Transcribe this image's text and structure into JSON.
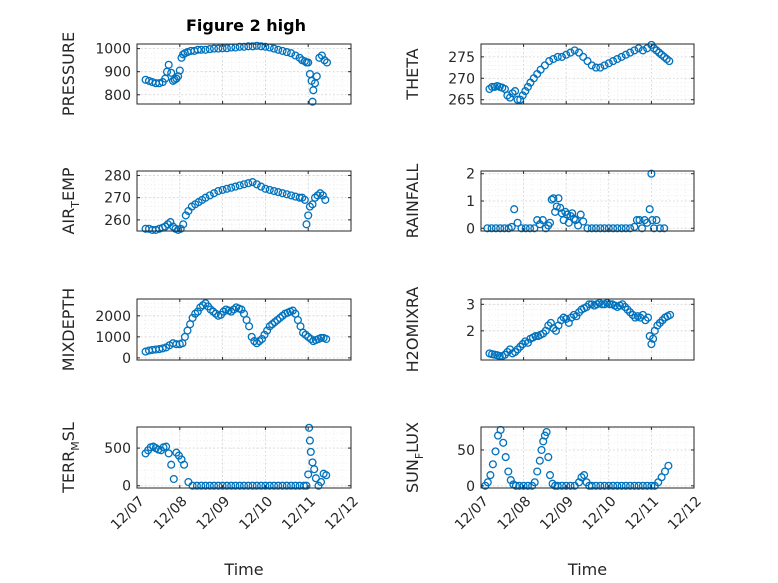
{
  "figure_title": "Figure 2 high",
  "colors": {
    "series": "#0072BD",
    "axes": "#262626"
  },
  "chart_data": [
    {
      "type": "scatter",
      "panel": "top-left",
      "ylabel": "PRESSURE",
      "xlim": [
        0,
        5
      ],
      "ylim": [
        760,
        1020
      ],
      "yticks": [
        800,
        900,
        1000
      ],
      "yticklabels": [
        "800",
        "900",
        "1000"
      ],
      "xticks": [
        0,
        1,
        2,
        3,
        4,
        5
      ],
      "xticklabels": [
        "12/07",
        "12/08",
        "12/09",
        "12/10",
        "12/11",
        "12/12"
      ],
      "grid": true,
      "minor_grid": true,
      "x": [
        0.2,
        0.28,
        0.36,
        0.44,
        0.52,
        0.6,
        0.66,
        0.7,
        0.74,
        0.8,
        0.84,
        0.88,
        0.92,
        0.96,
        1.0,
        1.04,
        1.08,
        1.12,
        1.18,
        1.26,
        1.34,
        1.42,
        1.5,
        1.6,
        1.7,
        1.8,
        1.9,
        2.0,
        2.1,
        2.2,
        2.3,
        2.4,
        2.5,
        2.6,
        2.7,
        2.8,
        2.9,
        3.0,
        3.1,
        3.2,
        3.3,
        3.4,
        3.5,
        3.6,
        3.7,
        3.8,
        3.86,
        3.92,
        3.96,
        4.0,
        4.04,
        4.08,
        4.1,
        4.12,
        4.16,
        4.2,
        4.26,
        4.32,
        4.38,
        4.44
      ],
      "y": [
        865,
        860,
        855,
        850,
        850,
        855,
        870,
        900,
        930,
        895,
        860,
        865,
        870,
        880,
        905,
        960,
        975,
        980,
        985,
        990,
        990,
        995,
        995,
        995,
        998,
        1000,
        1000,
        1002,
        1002,
        1005,
        1005,
        1008,
        1008,
        1010,
        1010,
        1012,
        1010,
        1008,
        1005,
        1000,
        995,
        990,
        985,
        980,
        970,
        960,
        950,
        945,
        940,
        940,
        890,
        860,
        770,
        820,
        850,
        880,
        960,
        970,
        950,
        940
      ]
    },
    {
      "type": "scatter",
      "panel": "top-right",
      "ylabel": "THETA",
      "xlim": [
        0,
        5
      ],
      "ylim": [
        264,
        278
      ],
      "yticks": [
        265,
        270,
        275
      ],
      "yticklabels": [
        "265",
        "270",
        "275"
      ],
      "xticks": [
        0,
        1,
        2,
        3,
        4,
        5
      ],
      "xticklabels": [
        "12/07",
        "12/08",
        "12/09",
        "12/10",
        "12/11",
        "12/12"
      ],
      "grid": true,
      "minor_grid": true,
      "x": [
        0.2,
        0.26,
        0.32,
        0.38,
        0.44,
        0.5,
        0.56,
        0.62,
        0.68,
        0.74,
        0.8,
        0.86,
        0.92,
        0.98,
        1.04,
        1.1,
        1.16,
        1.24,
        1.32,
        1.4,
        1.5,
        1.6,
        1.7,
        1.8,
        1.9,
        2.0,
        2.1,
        2.2,
        2.3,
        2.4,
        2.5,
        2.6,
        2.7,
        2.8,
        2.9,
        3.0,
        3.1,
        3.2,
        3.3,
        3.4,
        3.5,
        3.6,
        3.7,
        3.8,
        3.9,
        4.0,
        4.06,
        4.12,
        4.18,
        4.24,
        4.3,
        4.36,
        4.42
      ],
      "y": [
        267.5,
        268,
        268,
        268.2,
        268,
        267.8,
        267.5,
        266,
        265.5,
        266.5,
        267,
        265,
        265,
        266,
        267,
        268,
        269,
        270,
        271,
        272,
        273,
        274,
        274.5,
        275,
        275,
        275.5,
        276,
        276.5,
        276,
        275,
        274,
        273,
        272.5,
        272.5,
        273,
        273.5,
        274,
        274.5,
        275,
        275.5,
        276,
        276.5,
        277,
        276.5,
        277,
        277.8,
        277,
        276.5,
        276,
        275.5,
        275,
        274.5,
        274
      ]
    },
    {
      "type": "scatter",
      "panel": "mid-upper-left",
      "ylabel": "AIR_TEMP",
      "xlim": [
        0,
        5
      ],
      "ylim": [
        255,
        282
      ],
      "yticks": [
        260,
        270,
        280
      ],
      "yticklabels": [
        "260",
        "270",
        "280"
      ],
      "xticks": [
        0,
        1,
        2,
        3,
        4,
        5
      ],
      "xticklabels": [
        "12/07",
        "12/08",
        "12/09",
        "12/10",
        "12/11",
        "12/12"
      ],
      "grid": true,
      "minor_grid": true,
      "x": [
        0.2,
        0.28,
        0.36,
        0.44,
        0.52,
        0.6,
        0.66,
        0.72,
        0.78,
        0.84,
        0.9,
        0.96,
        1.02,
        1.08,
        1.14,
        1.2,
        1.28,
        1.36,
        1.44,
        1.52,
        1.6,
        1.7,
        1.8,
        1.9,
        2.0,
        2.1,
        2.2,
        2.3,
        2.4,
        2.5,
        2.6,
        2.7,
        2.8,
        2.9,
        3.0,
        3.1,
        3.2,
        3.3,
        3.4,
        3.5,
        3.6,
        3.7,
        3.8,
        3.86,
        3.92,
        3.96,
        4.0,
        4.04,
        4.1,
        4.16,
        4.22,
        4.28,
        4.34,
        4.4
      ],
      "y": [
        256,
        256,
        255.5,
        255.5,
        256,
        256.5,
        257,
        258,
        259,
        257,
        256,
        255.5,
        256,
        258,
        262,
        264,
        266,
        267,
        268,
        269,
        270,
        271,
        272,
        273,
        273.5,
        274,
        274.5,
        275,
        275.5,
        276,
        276.5,
        277,
        276,
        275,
        274,
        273.5,
        273,
        272.5,
        272,
        271.5,
        271,
        270.5,
        270,
        270,
        269,
        258,
        262,
        266,
        267,
        270,
        271,
        272,
        271,
        269
      ]
    },
    {
      "type": "scatter",
      "panel": "mid-upper-right",
      "ylabel": "RAINFALL",
      "xlim": [
        0,
        5
      ],
      "ylim": [
        -0.1,
        2.1
      ],
      "yticks": [
        0,
        1,
        2
      ],
      "yticklabels": [
        "0",
        "1",
        "2"
      ],
      "xticks": [
        0,
        1,
        2,
        3,
        4,
        5
      ],
      "xticklabels": [
        "12/07",
        "12/08",
        "12/09",
        "12/10",
        "12/11",
        "12/12"
      ],
      "grid": true,
      "minor_grid": true,
      "x": [
        0.15,
        0.25,
        0.35,
        0.45,
        0.55,
        0.65,
        0.72,
        0.78,
        0.86,
        0.95,
        1.05,
        1.15,
        1.25,
        1.32,
        1.38,
        1.45,
        1.52,
        1.58,
        1.62,
        1.66,
        1.7,
        1.74,
        1.78,
        1.82,
        1.86,
        1.9,
        1.94,
        1.98,
        2.02,
        2.06,
        2.1,
        2.14,
        2.18,
        2.22,
        2.28,
        2.34,
        2.4,
        2.5,
        2.6,
        2.7,
        2.8,
        2.9,
        3.0,
        3.1,
        3.2,
        3.3,
        3.4,
        3.5,
        3.6,
        3.66,
        3.72,
        3.78,
        3.84,
        3.9,
        3.96,
        4.0,
        4.02,
        4.06,
        4.12,
        4.2,
        4.3
      ],
      "y": [
        0,
        0,
        0,
        0,
        0,
        0,
        0.05,
        0.7,
        0.2,
        0,
        0,
        0,
        0,
        0.3,
        0.15,
        0.3,
        0,
        0.1,
        0.2,
        1.05,
        1.1,
        0.6,
        0.8,
        1.1,
        0.75,
        0.55,
        0.3,
        0.6,
        0.5,
        0.2,
        0.45,
        0.55,
        0.35,
        0.3,
        0.1,
        0.5,
        0.25,
        0,
        0,
        0,
        0,
        0,
        0,
        0,
        0,
        0,
        0,
        0,
        0.05,
        0.3,
        0.3,
        0,
        0.3,
        0.2,
        0.7,
        2.0,
        0.3,
        0,
        0.3,
        0,
        0
      ]
    },
    {
      "type": "scatter",
      "panel": "mid-lower-left",
      "ylabel": "MIXDEPTH",
      "xlim": [
        0,
        5
      ],
      "ylim": [
        -100,
        2800
      ],
      "yticks": [
        0,
        1000,
        2000
      ],
      "yticklabels": [
        "0",
        "1000",
        "2000"
      ],
      "xticks": [
        0,
        1,
        2,
        3,
        4,
        5
      ],
      "xticklabels": [
        "12/07",
        "12/08",
        "12/09",
        "12/10",
        "12/11",
        "12/12"
      ],
      "grid": true,
      "minor_grid": true,
      "x": [
        0.2,
        0.28,
        0.36,
        0.44,
        0.52,
        0.6,
        0.68,
        0.76,
        0.84,
        0.92,
        1.0,
        1.06,
        1.12,
        1.18,
        1.24,
        1.3,
        1.36,
        1.42,
        1.48,
        1.54,
        1.6,
        1.66,
        1.72,
        1.78,
        1.84,
        1.9,
        1.96,
        2.02,
        2.08,
        2.14,
        2.2,
        2.26,
        2.32,
        2.38,
        2.44,
        2.5,
        2.56,
        2.62,
        2.68,
        2.74,
        2.8,
        2.86,
        2.92,
        2.98,
        3.04,
        3.1,
        3.16,
        3.22,
        3.28,
        3.34,
        3.4,
        3.46,
        3.52,
        3.58,
        3.64,
        3.7,
        3.76,
        3.82,
        3.88,
        3.94,
        4.0,
        4.06,
        4.12,
        4.18,
        4.24,
        4.3,
        4.36,
        4.42
      ],
      "y": [
        300,
        350,
        380,
        400,
        420,
        450,
        500,
        600,
        700,
        650,
        650,
        700,
        1000,
        1300,
        1600,
        1900,
        2100,
        2200,
        2400,
        2500,
        2600,
        2450,
        2300,
        2200,
        2100,
        2000,
        2050,
        2200,
        2300,
        2250,
        2200,
        2300,
        2400,
        2350,
        2300,
        2100,
        1800,
        1500,
        1000,
        800,
        700,
        800,
        900,
        1100,
        1300,
        1500,
        1600,
        1700,
        1800,
        1900,
        2000,
        2100,
        2150,
        2200,
        2250,
        2100,
        1800,
        1500,
        1200,
        1100,
        1000,
        900,
        800,
        850,
        900,
        950,
        950,
        900
      ]
    },
    {
      "type": "scatter",
      "panel": "mid-lower-right",
      "ylabel": "H2OMIXRA",
      "xlim": [
        0,
        5
      ],
      "ylim": [
        0.9,
        3.2
      ],
      "yticks": [
        2,
        3
      ],
      "yticklabels": [
        "2",
        "3"
      ],
      "xticks": [
        0,
        1,
        2,
        3,
        4,
        5
      ],
      "xticklabels": [
        "12/07",
        "12/08",
        "12/09",
        "12/10",
        "12/11",
        "12/12"
      ],
      "grid": true,
      "minor_grid": true,
      "x": [
        0.2,
        0.26,
        0.32,
        0.38,
        0.44,
        0.5,
        0.56,
        0.62,
        0.68,
        0.74,
        0.8,
        0.86,
        0.92,
        0.98,
        1.04,
        1.1,
        1.16,
        1.22,
        1.28,
        1.34,
        1.4,
        1.46,
        1.52,
        1.58,
        1.64,
        1.7,
        1.76,
        1.82,
        1.88,
        1.94,
        2.0,
        2.06,
        2.12,
        2.18,
        2.24,
        2.3,
        2.36,
        2.42,
        2.48,
        2.54,
        2.6,
        2.66,
        2.72,
        2.78,
        2.84,
        2.9,
        2.96,
        3.02,
        3.08,
        3.14,
        3.2,
        3.26,
        3.32,
        3.38,
        3.44,
        3.5,
        3.56,
        3.62,
        3.68,
        3.74,
        3.8,
        3.86,
        3.92,
        3.96,
        4.0,
        4.04,
        4.08,
        4.14,
        4.2,
        4.26,
        4.32,
        4.38,
        4.44
      ],
      "y": [
        1.15,
        1.12,
        1.1,
        1.08,
        1.05,
        1.05,
        1.1,
        1.2,
        1.3,
        1.15,
        1.2,
        1.3,
        1.4,
        1.5,
        1.6,
        1.55,
        1.7,
        1.75,
        1.8,
        1.8,
        1.85,
        1.9,
        2.0,
        2.2,
        2.3,
        2.1,
        2.0,
        2.2,
        2.4,
        2.5,
        2.45,
        2.3,
        2.5,
        2.6,
        2.55,
        2.7,
        2.8,
        2.85,
        2.9,
        3.0,
        3.0,
        2.95,
        3.0,
        3.05,
        3.0,
        3.0,
        3.05,
        3.0,
        3.0,
        2.95,
        2.9,
        2.95,
        3.0,
        2.9,
        2.8,
        2.7,
        2.6,
        2.5,
        2.55,
        2.5,
        2.6,
        2.4,
        2.5,
        1.8,
        1.5,
        1.7,
        2.0,
        2.2,
        2.3,
        2.4,
        2.5,
        2.55,
        2.6
      ]
    },
    {
      "type": "scatter",
      "panel": "bottom-left",
      "ylabel": "TERR_MSL",
      "xlim": [
        0,
        5
      ],
      "ylim": [
        -30,
        780
      ],
      "yticks": [
        0,
        500
      ],
      "yticklabels": [
        "0",
        "500"
      ],
      "xticks": [
        0,
        1,
        2,
        3,
        4,
        5
      ],
      "xticklabels": [
        "12/07",
        "12/08",
        "12/09",
        "12/10",
        "12/11",
        "12/12"
      ],
      "xlabel": "Time",
      "grid": true,
      "minor_grid": true,
      "x": [
        0.2,
        0.26,
        0.32,
        0.38,
        0.44,
        0.5,
        0.56,
        0.62,
        0.68,
        0.74,
        0.8,
        0.86,
        0.92,
        0.98,
        1.04,
        1.1,
        1.2,
        1.3,
        1.4,
        1.5,
        1.6,
        1.7,
        1.8,
        1.9,
        2.0,
        2.1,
        2.2,
        2.3,
        2.4,
        2.5,
        2.6,
        2.7,
        2.8,
        2.9,
        3.0,
        3.1,
        3.2,
        3.3,
        3.4,
        3.5,
        3.6,
        3.7,
        3.8,
        3.9,
        3.96,
        4.0,
        4.02,
        4.04,
        4.06,
        4.1,
        4.14,
        4.18,
        4.24,
        4.3,
        4.36,
        4.42
      ],
      "y": [
        430,
        470,
        510,
        520,
        500,
        480,
        470,
        510,
        520,
        430,
        280,
        90,
        440,
        400,
        350,
        280,
        50,
        0,
        0,
        0,
        0,
        0,
        0,
        0,
        0,
        0,
        0,
        0,
        0,
        0,
        0,
        0,
        0,
        0,
        0,
        0,
        0,
        0,
        0,
        0,
        0,
        0,
        0,
        0,
        0,
        150,
        770,
        600,
        450,
        310,
        220,
        100,
        0,
        50,
        160,
        140
      ]
    },
    {
      "type": "scatter",
      "panel": "bottom-right",
      "ylabel": "SUN_FLUX",
      "xlim": [
        0,
        5
      ],
      "ylim": [
        -3,
        82
      ],
      "yticks": [
        0,
        50
      ],
      "yticklabels": [
        "0",
        "50"
      ],
      "xticks": [
        0,
        1,
        2,
        3,
        4,
        5
      ],
      "xticklabels": [
        "12/07",
        "12/08",
        "12/09",
        "12/10",
        "12/11",
        "12/12"
      ],
      "xlabel": "Time",
      "grid": true,
      "minor_grid": true,
      "x": [
        0.1,
        0.16,
        0.22,
        0.28,
        0.34,
        0.4,
        0.46,
        0.52,
        0.58,
        0.64,
        0.7,
        0.76,
        0.82,
        0.9,
        1.0,
        1.1,
        1.2,
        1.26,
        1.32,
        1.38,
        1.42,
        1.46,
        1.5,
        1.54,
        1.58,
        1.62,
        1.68,
        1.74,
        1.8,
        1.9,
        2.0,
        2.1,
        2.2,
        2.3,
        2.36,
        2.42,
        2.48,
        2.54,
        2.6,
        2.7,
        2.8,
        2.9,
        3.0,
        3.1,
        3.2,
        3.3,
        3.4,
        3.5,
        3.6,
        3.7,
        3.8,
        3.9,
        4.0,
        4.08,
        4.16,
        4.24,
        4.32,
        4.4
      ],
      "y": [
        0,
        5,
        15,
        30,
        48,
        70,
        78,
        60,
        40,
        20,
        8,
        2,
        0,
        0,
        0,
        0,
        0,
        5,
        20,
        35,
        50,
        62,
        70,
        75,
        40,
        15,
        3,
        0,
        0,
        0,
        0,
        0,
        0,
        5,
        12,
        15,
        5,
        0,
        0,
        0,
        0,
        0,
        0,
        0,
        0,
        0,
        0,
        0,
        0,
        0,
        0,
        0,
        0,
        0,
        5,
        12,
        20,
        28
      ]
    }
  ]
}
